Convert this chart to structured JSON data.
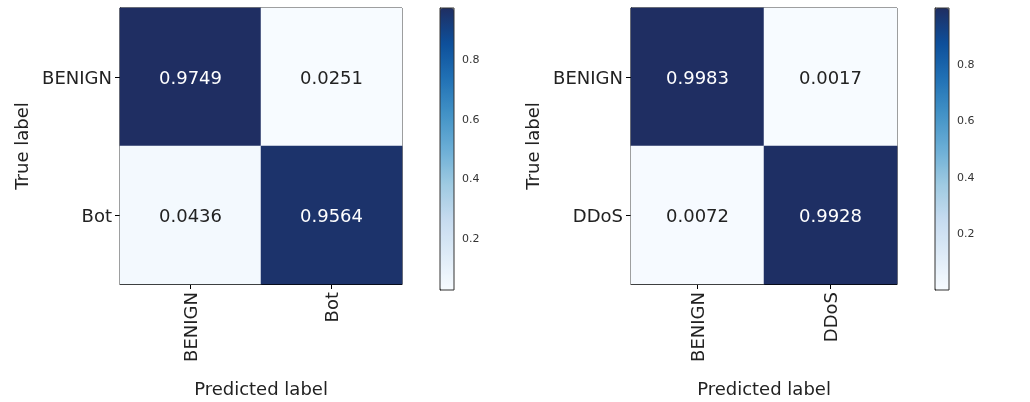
{
  "chart_data": [
    {
      "type": "heatmap",
      "categories": [
        "BENIGN",
        "Bot"
      ],
      "y_categories": [
        "BENIGN",
        "Bot"
      ],
      "xlabel": "Predicted label",
      "ylabel": "True label",
      "cells": [
        [
          0.9749,
          0.0251
        ],
        [
          0.0436,
          0.9564
        ]
      ],
      "data_labels": true,
      "clim": [
        0.0251,
        0.9749
      ],
      "cticks": [
        0.2,
        0.4,
        0.6,
        0.8
      ]
    },
    {
      "type": "heatmap",
      "categories": [
        "BENIGN",
        "DDoS"
      ],
      "y_categories": [
        "BENIGN",
        "DDoS"
      ],
      "xlabel": "Predicted label",
      "ylabel": "True label",
      "cells": [
        [
          0.9983,
          0.0017
        ],
        [
          0.0072,
          0.9928
        ]
      ],
      "data_labels": true,
      "clim": [
        0.0017,
        0.9983
      ],
      "cticks": [
        0.2,
        0.4,
        0.6,
        0.8
      ]
    }
  ]
}
